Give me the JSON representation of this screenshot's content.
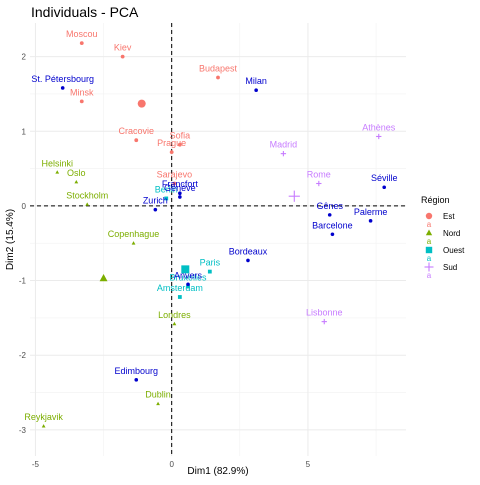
{
  "chart_data": {
    "type": "scatter",
    "title": "Individuals - PCA",
    "xlabel": "Dim1 (82.9%)",
    "ylabel": "Dim2 (15.4%)",
    "xlim": [
      -5.2,
      8.6
    ],
    "ylim": [
      -3.35,
      2.45
    ],
    "xticks": [
      -5,
      0,
      5
    ],
    "yticks": [
      -3,
      -2,
      -1,
      0,
      1,
      2
    ],
    "grid": true,
    "reference_lines": {
      "x": 0,
      "y": 0,
      "style": "dashed"
    },
    "legend": {
      "title": "Région",
      "position": "right",
      "entries": [
        {
          "name": "Est",
          "color": "#F8766D",
          "shape": "circle"
        },
        {
          "name": "Nord",
          "color": "#7CAE00",
          "shape": "triangle"
        },
        {
          "name": "Ouest",
          "color": "#00BFC4",
          "shape": "square"
        },
        {
          "name": "Sud",
          "color": "#C77CFF",
          "shape": "plus"
        }
      ]
    },
    "series": [
      {
        "name": "Est",
        "color": "#F8766D",
        "shape": "circle",
        "points": [
          {
            "label": "Moscou",
            "x": -3.3,
            "y": 2.18
          },
          {
            "label": "Kiev",
            "x": -1.8,
            "y": 2.0
          },
          {
            "label": "Budapest",
            "x": 1.7,
            "y": 1.72
          },
          {
            "label": "Minsk",
            "x": -3.3,
            "y": 1.4
          },
          {
            "label": "Cracovie",
            "x": -1.3,
            "y": 0.88
          },
          {
            "label": "Sofia",
            "x": 0.3,
            "y": 0.82
          },
          {
            "label": "Prague",
            "x": 0.0,
            "y": 0.72
          },
          {
            "label": "Sarajevo",
            "x": 0.1,
            "y": 0.3
          }
        ]
      },
      {
        "name": "Nord",
        "color": "#7CAE00",
        "shape": "triangle",
        "points": [
          {
            "label": "Helsinki",
            "x": -4.2,
            "y": 0.45
          },
          {
            "label": "Oslo",
            "x": -3.5,
            "y": 0.32
          },
          {
            "label": "Stockholm",
            "x": -3.1,
            "y": 0.02
          },
          {
            "label": "Copenhague",
            "x": -1.4,
            "y": -0.5
          },
          {
            "label": "Londres",
            "x": 0.1,
            "y": -1.58
          },
          {
            "label": "Dublin",
            "x": -0.5,
            "y": -2.65
          },
          {
            "label": "Reykjavik",
            "x": -4.7,
            "y": -2.95
          }
        ]
      },
      {
        "name": "Ouest",
        "color": "#00BFC4",
        "shape": "square",
        "points": [
          {
            "label": "Berlin",
            "x": -0.2,
            "y": 0.1
          },
          {
            "label": "Paris",
            "x": 1.4,
            "y": -0.88
          },
          {
            "label": "Bruxelles",
            "x": 0.6,
            "y": -1.08
          },
          {
            "label": "Amsterdam",
            "x": 0.3,
            "y": -1.22
          }
        ]
      },
      {
        "name": "Sud",
        "color": "#C77CFF",
        "shape": "plus",
        "points": [
          {
            "label": "Athènes",
            "x": 7.6,
            "y": 0.93
          },
          {
            "label": "Madrid",
            "x": 4.1,
            "y": 0.7
          },
          {
            "label": "Rome",
            "x": 5.4,
            "y": 0.3
          },
          {
            "label": "Lisbonne",
            "x": 5.6,
            "y": -1.55
          }
        ]
      },
      {
        "name": "",
        "color": "#0000CD",
        "shape": "dot",
        "points": [
          {
            "label": "St. Pétersbourg",
            "x": -4.0,
            "y": 1.58
          },
          {
            "label": "Milan",
            "x": 3.1,
            "y": 1.55
          },
          {
            "label": "Francfort",
            "x": 0.3,
            "y": 0.17
          },
          {
            "label": "Genève",
            "x": 0.3,
            "y": 0.12
          },
          {
            "label": "Zurich",
            "x": -0.6,
            "y": -0.05
          },
          {
            "label": "Séville",
            "x": 7.8,
            "y": 0.25
          },
          {
            "label": "Gênes",
            "x": 5.8,
            "y": -0.12
          },
          {
            "label": "Palerme",
            "x": 7.3,
            "y": -0.2
          },
          {
            "label": "Barcelone",
            "x": 5.9,
            "y": -0.38
          },
          {
            "label": "Bordeaux",
            "x": 2.8,
            "y": -0.73
          },
          {
            "label": "Anvers",
            "x": 0.6,
            "y": -1.05
          },
          {
            "label": "Edimbourg",
            "x": -1.3,
            "y": -2.33
          }
        ]
      }
    ],
    "centroids": [
      {
        "name": "Est",
        "color": "#F8766D",
        "shape": "circle",
        "x": -1.1,
        "y": 1.37
      },
      {
        "name": "Nord",
        "color": "#7CAE00",
        "shape": "triangle",
        "x": -2.5,
        "y": -0.97
      },
      {
        "name": "Ouest",
        "color": "#00BFC4",
        "shape": "square",
        "x": 0.5,
        "y": -0.85
      },
      {
        "name": "Sud",
        "color": "#C77CFF",
        "shape": "plus",
        "x": 4.5,
        "y": 0.13
      }
    ]
  }
}
